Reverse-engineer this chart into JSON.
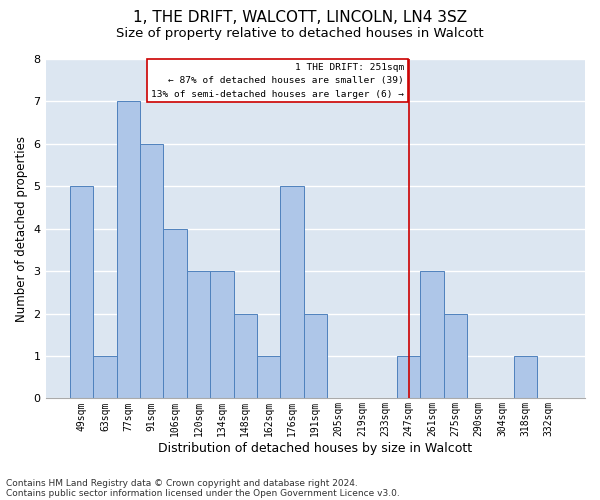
{
  "title": "1, THE DRIFT, WALCOTT, LINCOLN, LN4 3SZ",
  "subtitle": "Size of property relative to detached houses in Walcott",
  "xlabel": "Distribution of detached houses by size in Walcott",
  "ylabel": "Number of detached properties",
  "categories": [
    "49sqm",
    "63sqm",
    "77sqm",
    "91sqm",
    "106sqm",
    "120sqm",
    "134sqm",
    "148sqm",
    "162sqm",
    "176sqm",
    "191sqm",
    "205sqm",
    "219sqm",
    "233sqm",
    "247sqm",
    "261sqm",
    "275sqm",
    "290sqm",
    "304sqm",
    "318sqm",
    "332sqm"
  ],
  "values": [
    5,
    1,
    7,
    6,
    4,
    3,
    3,
    2,
    1,
    5,
    2,
    0,
    0,
    0,
    1,
    3,
    2,
    0,
    0,
    1,
    0
  ],
  "bar_color": "#aec6e8",
  "bar_edge_color": "#4f81bd",
  "grid_color": "#ffffff",
  "bg_color": "#dce6f1",
  "property_line_x": 14,
  "property_line_color": "#cc0000",
  "annotation_text": "1 THE DRIFT: 251sqm\n← 87% of detached houses are smaller (39)\n13% of semi-detached houses are larger (6) →",
  "annotation_box_color": "#cc0000",
  "ylim": [
    0,
    8
  ],
  "yticks": [
    0,
    1,
    2,
    3,
    4,
    5,
    6,
    7,
    8
  ],
  "footnote1": "Contains HM Land Registry data © Crown copyright and database right 2024.",
  "footnote2": "Contains public sector information licensed under the Open Government Licence v3.0.",
  "title_fontsize": 11,
  "subtitle_fontsize": 9.5,
  "xlabel_fontsize": 9,
  "ylabel_fontsize": 8.5,
  "tick_fontsize": 7,
  "footnote_fontsize": 6.5
}
